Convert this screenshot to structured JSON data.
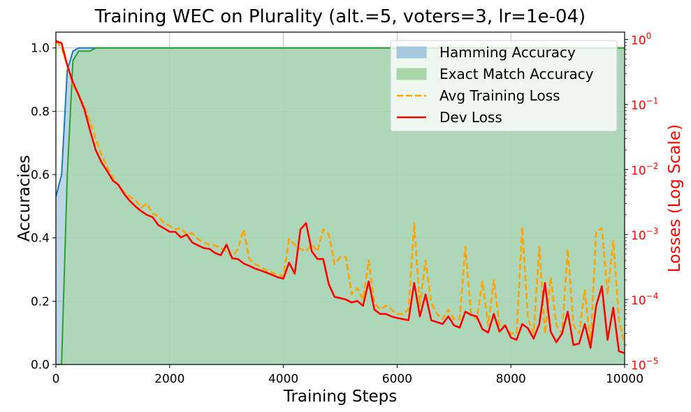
{
  "chart_data": {
    "type": "line",
    "title": "Training WEC on Plurality (alt.=5, voters=3, lr=1e-04)",
    "xlabel": "Training Steps",
    "ylabel_left": "Accuracies",
    "ylabel_right": "Losses (Log Scale)",
    "xlim": [
      0,
      10000
    ],
    "ylim_left": [
      0,
      1.05
    ],
    "ylim_right_log": [
      1e-05,
      1.3
    ],
    "grid": true,
    "legend_position": "top-right",
    "x_ticks": [
      {
        "v": 0,
        "label": "0"
      },
      {
        "v": 2000,
        "label": "2000"
      },
      {
        "v": 4000,
        "label": "4000"
      },
      {
        "v": 6000,
        "label": "6000"
      },
      {
        "v": 8000,
        "label": "8000"
      },
      {
        "v": 10000,
        "label": "10000"
      }
    ],
    "y_ticks_left": [
      {
        "v": 0.0,
        "label": "0.0"
      },
      {
        "v": 0.2,
        "label": "0.2"
      },
      {
        "v": 0.4,
        "label": "0.4"
      },
      {
        "v": 0.6,
        "label": "0.6"
      },
      {
        "v": 0.8,
        "label": "0.8"
      },
      {
        "v": 1.0,
        "label": "1.0"
      }
    ],
    "y_ticks_right": [
      {
        "v": 1e-05,
        "base": "10",
        "exp": "−5"
      },
      {
        "v": 0.0001,
        "base": "10",
        "exp": "−4"
      },
      {
        "v": 0.001,
        "base": "10",
        "exp": "−3"
      },
      {
        "v": 0.01,
        "base": "10",
        "exp": "−2"
      },
      {
        "v": 0.1,
        "base": "10",
        "exp": "−1"
      },
      {
        "v": 1,
        "base": "10",
        "exp": "0"
      }
    ],
    "series": [
      {
        "name": "Hamming Accuracy",
        "axis": "left",
        "kind": "area",
        "color": "#1f77b4",
        "fill": "#a6c8dc",
        "x": [
          0,
          100,
          200,
          300,
          400,
          500,
          600,
          700,
          800,
          10000
        ],
        "y": [
          0.53,
          0.6,
          0.93,
          0.99,
          1.0,
          1.0,
          1.0,
          1.0,
          1.0,
          1.0
        ]
      },
      {
        "name": "Exact Match Accuracy",
        "axis": "left",
        "kind": "area",
        "color": "#2ca02c",
        "fill": "#a9d6a9",
        "x": [
          0,
          100,
          200,
          300,
          400,
          500,
          600,
          700,
          800,
          10000
        ],
        "y": [
          0.0,
          0.0,
          0.6,
          0.96,
          0.99,
          0.99,
          0.99,
          1.0,
          1.0,
          1.0
        ]
      },
      {
        "name": "Avg Training Loss",
        "axis": "right",
        "kind": "dashed",
        "color": "#ffa500",
        "x": [
          0,
          100,
          200,
          300,
          400,
          500,
          600,
          700,
          800,
          900,
          1000,
          1100,
          1200,
          1300,
          1400,
          1500,
          1600,
          1700,
          1800,
          1900,
          2000,
          2100,
          2200,
          2300,
          2400,
          2500,
          2600,
          2700,
          2800,
          2900,
          3000,
          3100,
          3200,
          3300,
          3400,
          3500,
          3600,
          3700,
          3800,
          3900,
          4000,
          4100,
          4200,
          4300,
          4400,
          4500,
          4600,
          4700,
          4800,
          4900,
          5000,
          5100,
          5200,
          5300,
          5400,
          5500,
          5600,
          5700,
          5800,
          5900,
          6000,
          6100,
          6200,
          6300,
          6400,
          6500,
          6600,
          6700,
          6800,
          6900,
          7000,
          7100,
          7200,
          7300,
          7400,
          7500,
          7600,
          7700,
          7800,
          7900,
          8000,
          8100,
          8200,
          8300,
          8400,
          8500,
          8600,
          8700,
          8800,
          8900,
          9000,
          9100,
          9200,
          9300,
          9400,
          9500,
          9600,
          9700,
          9800,
          9900,
          10000
        ],
        "y": [
          0.95,
          0.75,
          0.4,
          0.2,
          0.14,
          0.09,
          0.055,
          0.03,
          0.017,
          0.011,
          0.0075,
          0.0058,
          0.0045,
          0.0038,
          0.0034,
          0.0026,
          0.003,
          0.0021,
          0.0019,
          0.0015,
          0.00135,
          0.0012,
          0.00125,
          0.001,
          0.00105,
          0.00085,
          0.00075,
          0.0007,
          0.00068,
          0.00062,
          0.00055,
          0.00045,
          0.0006,
          0.0012,
          0.00042,
          0.00035,
          0.00032,
          0.00028,
          0.00026,
          0.00024,
          0.00023,
          0.00085,
          0.0007,
          0.0006,
          0.00055,
          0.0007,
          0.00055,
          0.0012,
          0.001,
          0.00035,
          0.00045,
          0.00045,
          0.00012,
          0.00015,
          0.0001,
          0.0004,
          9e-05,
          7e-05,
          8e-05,
          7e-05,
          6e-05,
          6e-05,
          7e-05,
          0.0015,
          8e-05,
          0.0004,
          9e-05,
          6e-05,
          5e-05,
          7e-05,
          5e-05,
          5e-05,
          0.00065,
          6e-05,
          5e-05,
          0.00019,
          4e-05,
          0.0002,
          4e-05,
          4e-05,
          3e-05,
          3e-05,
          0.0013,
          5e-05,
          3e-05,
          0.00065,
          3e-05,
          0.00022,
          4e-05,
          3e-05,
          0.0006,
          4e-05,
          3e-05,
          0.00014,
          2e-05,
          0.0011,
          0.00125,
          0.00012,
          0.0008,
          5e-05,
          2e-05
        ]
      },
      {
        "name": "Dev Loss",
        "axis": "right",
        "kind": "solid",
        "color": "#ff0000",
        "x": [
          0,
          100,
          200,
          300,
          400,
          500,
          600,
          700,
          800,
          900,
          1000,
          1100,
          1200,
          1300,
          1400,
          1500,
          1600,
          1700,
          1800,
          1900,
          2000,
          2100,
          2200,
          2300,
          2400,
          2500,
          2600,
          2700,
          2800,
          2900,
          3000,
          3100,
          3200,
          3300,
          3400,
          3500,
          3600,
          3700,
          3800,
          3900,
          4000,
          4100,
          4200,
          4300,
          4400,
          4500,
          4600,
          4700,
          4800,
          4900,
          5000,
          5100,
          5200,
          5300,
          5400,
          5500,
          5600,
          5700,
          5800,
          5900,
          6000,
          6100,
          6200,
          6300,
          6400,
          6500,
          6600,
          6700,
          6800,
          6900,
          7000,
          7100,
          7200,
          7300,
          7400,
          7500,
          7600,
          7700,
          7800,
          7900,
          8000,
          8100,
          8200,
          8300,
          8400,
          8500,
          8600,
          8700,
          8800,
          8900,
          9000,
          9100,
          9200,
          9300,
          9400,
          9500,
          9600,
          9700,
          9800,
          9900,
          10000
        ],
        "y": [
          0.95,
          0.88,
          0.4,
          0.22,
          0.14,
          0.085,
          0.04,
          0.02,
          0.013,
          0.0095,
          0.0068,
          0.0058,
          0.0042,
          0.0033,
          0.0027,
          0.0023,
          0.002,
          0.00185,
          0.0014,
          0.00125,
          0.0011,
          0.0011,
          0.0009,
          0.001,
          0.00075,
          0.00068,
          0.00062,
          0.0006,
          0.00052,
          0.00048,
          0.0007,
          0.00043,
          0.00042,
          0.00036,
          0.00033,
          0.0003,
          0.00028,
          0.00026,
          0.00024,
          0.00022,
          0.00021,
          0.00037,
          0.00025,
          0.0012,
          0.0015,
          0.00055,
          0.00042,
          0.00042,
          0.00017,
          0.00011,
          0.000105,
          0.0001,
          9e-05,
          9.5e-05,
          8e-05,
          0.00019,
          7e-05,
          6e-05,
          6e-05,
          5.5e-05,
          5.2e-05,
          5e-05,
          4.8e-05,
          0.00018,
          5.5e-05,
          0.00012,
          4.8e-05,
          4.5e-05,
          4.2e-05,
          5.5e-05,
          4e-05,
          3.7e-05,
          6.5e-05,
          5.8e-05,
          5.5e-05,
          3.5e-05,
          3.1e-05,
          6e-05,
          3.2e-05,
          4e-05,
          2.6e-05,
          2.4e-05,
          4.2e-05,
          3.6e-05,
          2.5e-05,
          4.2e-05,
          0.00018,
          3.2e-05,
          2.2e-05,
          3e-05,
          6.5e-05,
          2e-05,
          2.1e-05,
          4.2e-05,
          1.8e-05,
          8e-05,
          0.00016,
          2.4e-05,
          7.5e-05,
          1.6e-05,
          1.5e-05
        ]
      }
    ]
  }
}
